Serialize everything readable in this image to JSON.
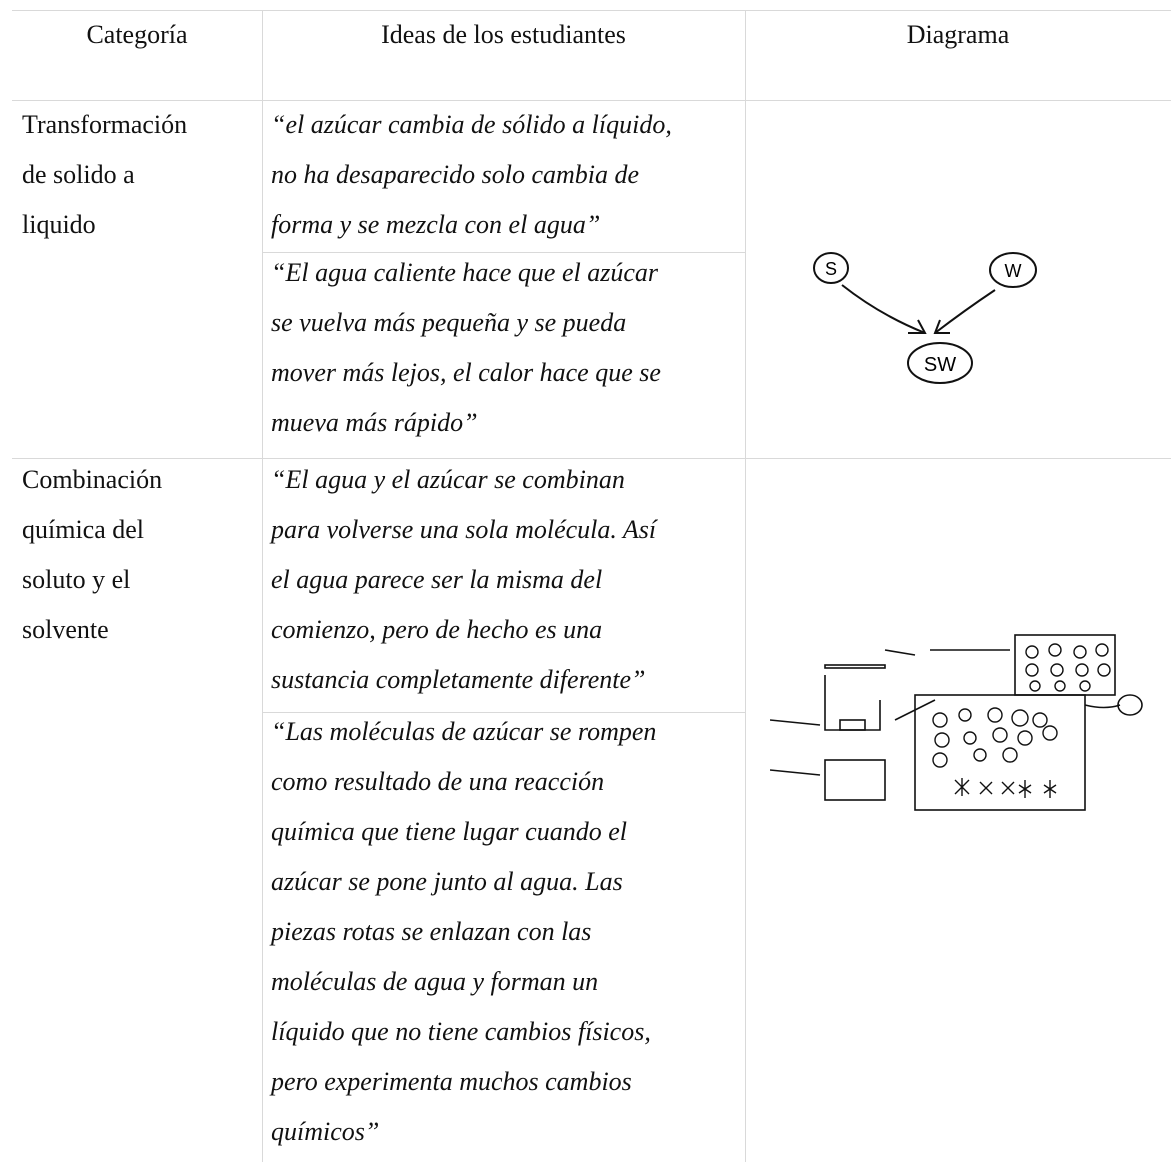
{
  "table": {
    "header": [
      "Categoría",
      "Ideas de los estudiantes",
      "Diagrama"
    ],
    "rows": [
      {
        "category": [
          "Transformación",
          "de solido a",
          "liquido"
        ],
        "ideas": [
          [
            "“el azúcar cambia de sólido a líquido,",
            "no ha desaparecido solo cambia de",
            "forma y se mezcla con el agua”"
          ],
          [
            "“El agua caliente hace que el azúcar",
            "se vuelva más pequeña y se pueda",
            "mover más lejos, el calor hace que se",
            "mueva más rápido”"
          ]
        ],
        "diagram": [
          "S",
          "W",
          "SW"
        ]
      },
      {
        "category": [
          "Combinación",
          "química del",
          "soluto y el",
          "solvente"
        ],
        "ideas": [
          [
            "“El agua y el azúcar se combinan",
            "para volverse una sola molécula. Así",
            "el agua parece ser la misma del",
            "comienzo, pero de hecho es una",
            "sustancia completamente diferente”"
          ],
          [
            "“Las moléculas de azúcar se rompen",
            "como resultado de una reacción",
            "química que tiene lugar cuando el",
            "azúcar se pone junto al agua. Las",
            "piezas rotas se enlazan con las",
            "moléculas de agua y forman un",
            "líquido que no tiene cambios físicos,",
            "pero experimenta muchos cambios",
            "químicos”"
          ]
        ]
      }
    ]
  }
}
